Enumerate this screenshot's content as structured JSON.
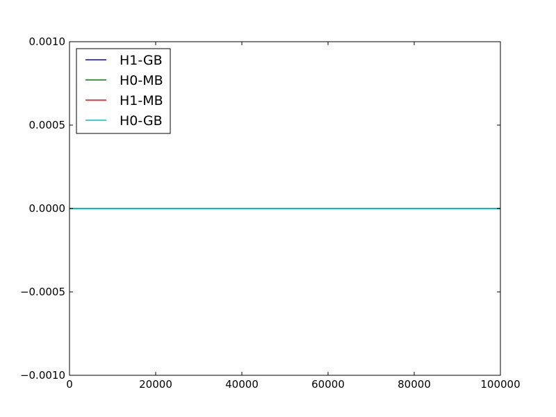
{
  "chart_data": {
    "type": "line",
    "title": "",
    "xlabel": "",
    "ylabel": "",
    "xlim": [
      0,
      100000
    ],
    "ylim": [
      -0.001,
      0.001
    ],
    "x_ticks": [
      {
        "value": 0,
        "label": "0"
      },
      {
        "value": 20000,
        "label": "20000"
      },
      {
        "value": 40000,
        "label": "40000"
      },
      {
        "value": 60000,
        "label": "60000"
      },
      {
        "value": 80000,
        "label": "80000"
      },
      {
        "value": 100000,
        "label": "100000"
      }
    ],
    "y_ticks": [
      {
        "value": 0.001,
        "label": "0.0010"
      },
      {
        "value": 0.0005,
        "label": "0.0005"
      },
      {
        "value": 0.0,
        "label": "0.0000"
      },
      {
        "value": -0.0005,
        "label": "−0.0005"
      },
      {
        "value": -0.001,
        "label": "−0.0010"
      }
    ],
    "grid": false,
    "legend_position": "top-left",
    "series": [
      {
        "name": "H1-GB",
        "color": "#0000ff",
        "x": [
          0,
          100000
        ],
        "y": [
          0,
          0
        ]
      },
      {
        "name": "H0-MB",
        "color": "#008000",
        "x": [
          0,
          100000
        ],
        "y": [
          0,
          0
        ]
      },
      {
        "name": "H1-MB",
        "color": "#ff0000",
        "x": [
          0,
          100000
        ],
        "y": [
          0,
          0
        ]
      },
      {
        "name": "H0-GB",
        "color": "#00bfbf",
        "x": [
          0,
          100000
        ],
        "y": [
          0,
          0
        ]
      }
    ]
  }
}
